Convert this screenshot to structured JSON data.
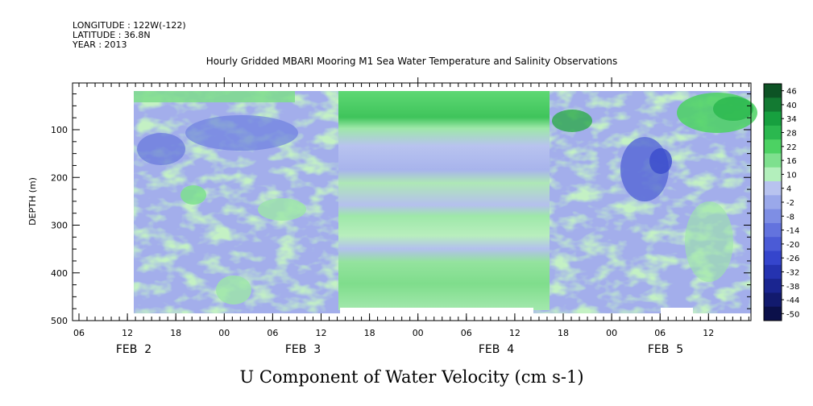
{
  "header": {
    "line1": "LONGITUDE : 122W(-122)",
    "line2": "LATITUDE : 36.8N",
    "line3": "YEAR : 2013"
  },
  "chart_data": {
    "type": "heatmap",
    "title": "Hourly Gridded MBARI Mooring M1 Sea Water Temperature and Salinity Observations",
    "bottom_title": "U Component of Water Velocity (cm s-1)",
    "xlabel": "",
    "ylabel": "DEPTH (m)",
    "x_tick_labels": [
      "06",
      "12",
      "18",
      "00",
      "06",
      "12",
      "18",
      "00",
      "06",
      "12",
      "18",
      "00",
      "06",
      "12"
    ],
    "date_labels": [
      "FEB  2",
      "FEB  3",
      "FEB  4",
      "FEB  5"
    ],
    "y_ticks": [
      100,
      200,
      300,
      400,
      500
    ],
    "ylim": [
      500,
      0
    ],
    "data_depth_range": [
      20,
      485
    ],
    "colorbar": {
      "labels": [
        "46",
        "40",
        "34",
        "28",
        "22",
        "16",
        "10",
        "4",
        "-2",
        "-8",
        "-14",
        "-20",
        "-26",
        "-32",
        "-38",
        "-44",
        "-50"
      ],
      "levels_range": [
        -50,
        49
      ],
      "colors": [
        "#0d5325",
        "#137a32",
        "#17a03f",
        "#2bb84f",
        "#4cd263",
        "#7ee08e",
        "#b3efbc",
        "#b8c3ef",
        "#9aa8ea",
        "#7e8ee4",
        "#6373de",
        "#4b5bd6",
        "#3545cc",
        "#2533b0",
        "#1a2590",
        "#121a6e",
        "#0b104a"
      ]
    }
  }
}
